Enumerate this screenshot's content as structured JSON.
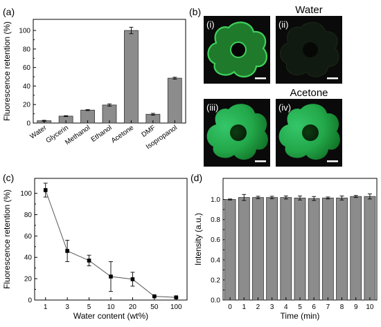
{
  "panels": {
    "a": "(a)",
    "b": "(b)",
    "c": "(c)",
    "d": "(d)"
  },
  "micrographs": {
    "water_title": "Water",
    "acetone_title": "Acetone",
    "tags": [
      "(i)",
      "(ii)",
      "(iii)",
      "(iv)"
    ]
  },
  "chart_data": [
    {
      "type": "bar",
      "panel": "(a)",
      "categories": [
        "Water",
        "Glycerin",
        "Methanol",
        "Ethanol",
        "Acetone",
        "DMF",
        "Isopropanol"
      ],
      "values": [
        2.5,
        7.5,
        14,
        19.5,
        100,
        9.5,
        48.5
      ],
      "errors": [
        0.5,
        0.5,
        0.5,
        1.2,
        3.5,
        1,
        1
      ],
      "xlabel": "",
      "ylabel": "Fluorescence retention (%)",
      "ylim": [
        0,
        112
      ],
      "yticks": [
        0,
        20,
        40,
        60,
        80,
        100
      ],
      "bar_color": "#8c8c8c"
    },
    {
      "type": "line",
      "panel": "(c)",
      "categories": [
        "1",
        "3",
        "5",
        "10",
        "20",
        "50",
        "100"
      ],
      "values": [
        103,
        46,
        37,
        22,
        19.5,
        3.5,
        2.5
      ],
      "errors": [
        6.5,
        10,
        5,
        14,
        6.5,
        0.5,
        0.5
      ],
      "xlabel": "Water content (wt%)",
      "ylabel": "Fluorescence retention (%)",
      "ylim": [
        0,
        114
      ],
      "yticks": [
        0,
        20,
        40,
        60,
        80,
        100
      ]
    },
    {
      "type": "bar",
      "panel": "(d)",
      "categories": [
        "0",
        "1",
        "2",
        "3",
        "4",
        "5",
        "6",
        "7",
        "8",
        "9",
        "10"
      ],
      "values": [
        1.0,
        1.02,
        1.02,
        1.02,
        1.02,
        1.015,
        1.01,
        1.015,
        1.015,
        1.03,
        1.03
      ],
      "errors": [
        0.005,
        0.03,
        0.012,
        0.012,
        0.015,
        0.02,
        0.02,
        0.01,
        0.02,
        0.01,
        0.025
      ],
      "xlabel": "Time (min)",
      "ylabel": "Intensity (a.u.)",
      "ylim": [
        0,
        1.21
      ],
      "yticks": [
        0.0,
        0.2,
        0.4,
        0.6,
        0.8,
        1.0
      ],
      "bar_color": "#8c8c8c"
    }
  ]
}
